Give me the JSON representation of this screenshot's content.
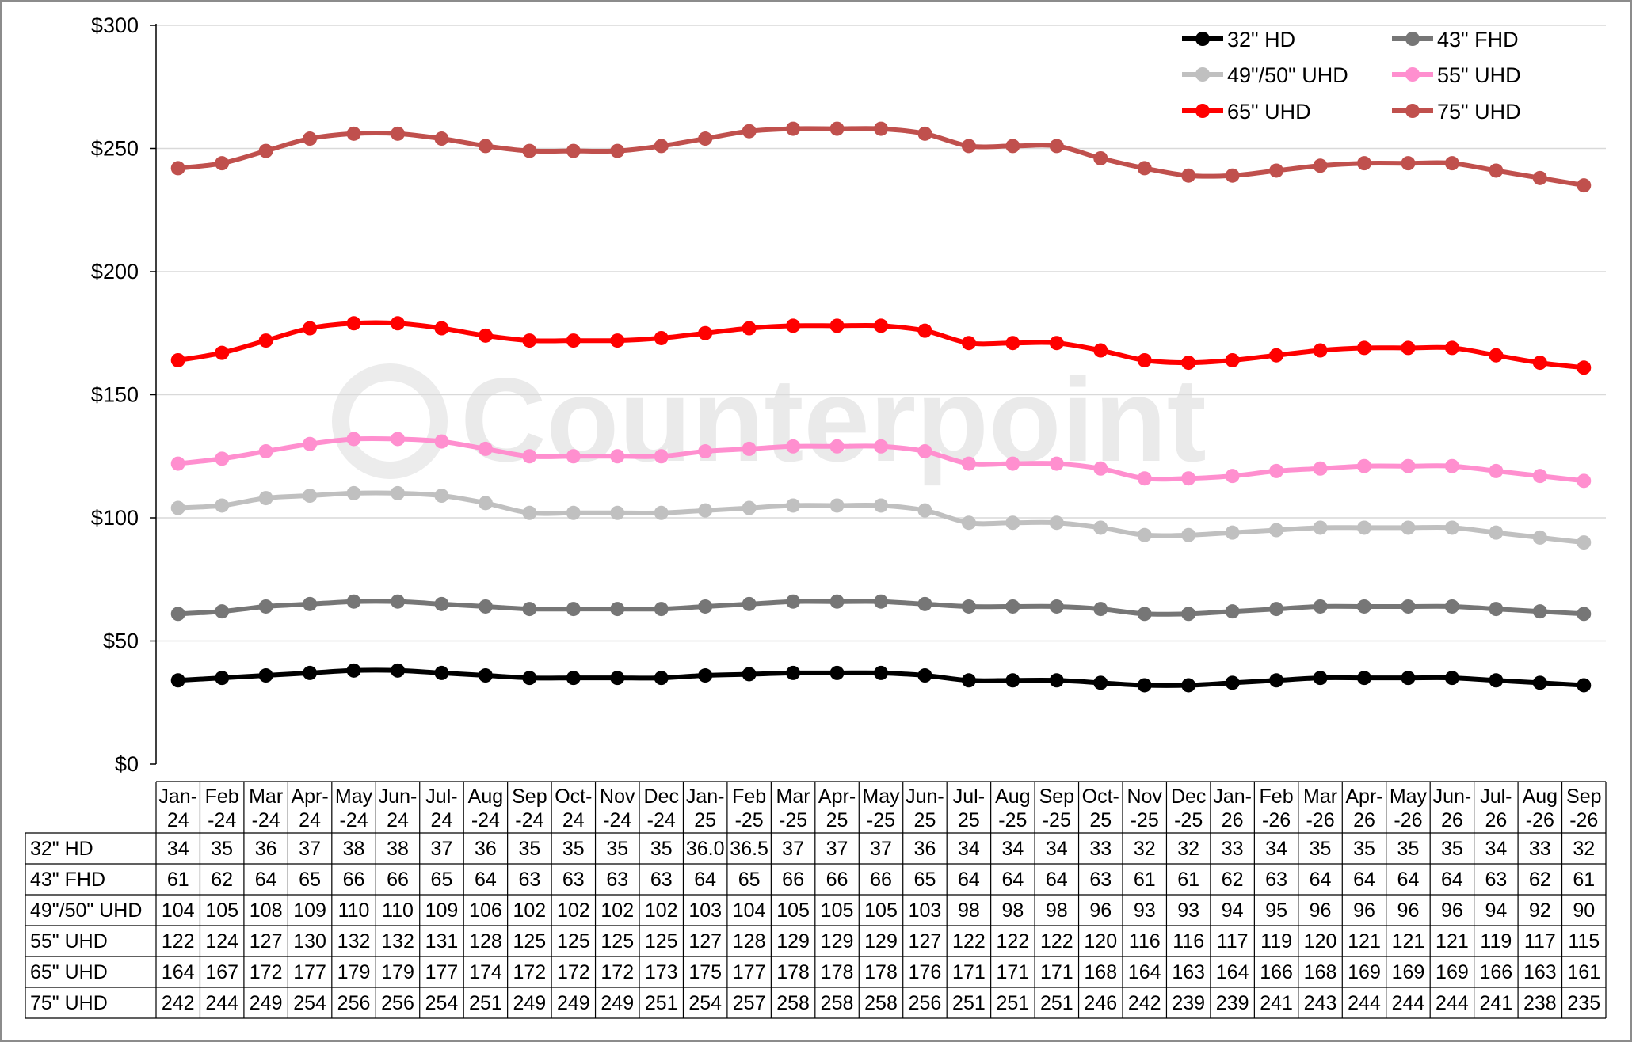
{
  "chart_data": {
    "type": "line",
    "title": "",
    "xlabel": "",
    "ylabel": "",
    "ylim": [
      0,
      300
    ],
    "y_ticks": [
      "$0",
      "$50",
      "$100",
      "$150",
      "$200",
      "$250",
      "$300"
    ],
    "y_tick_values": [
      0,
      50,
      100,
      150,
      200,
      250,
      300
    ],
    "grid": "horizontal",
    "legend_position": "top-right",
    "watermark": "Counterpoint",
    "categories": [
      [
        "Jan-",
        "24"
      ],
      [
        "Feb",
        "-24"
      ],
      [
        "Mar",
        "-24"
      ],
      [
        "Apr-",
        "24"
      ],
      [
        "May",
        "-24"
      ],
      [
        "Jun-",
        "24"
      ],
      [
        "Jul-",
        "24"
      ],
      [
        "Aug",
        "-24"
      ],
      [
        "Sep",
        "-24"
      ],
      [
        "Oct-",
        "24"
      ],
      [
        "Nov",
        "-24"
      ],
      [
        "Dec",
        "-24"
      ],
      [
        "Jan-",
        "25"
      ],
      [
        "Feb",
        "-25"
      ],
      [
        "Mar",
        "-25"
      ],
      [
        "Apr-",
        "25"
      ],
      [
        "May",
        "-25"
      ],
      [
        "Jun-",
        "25"
      ],
      [
        "Jul-",
        "25"
      ],
      [
        "Aug",
        "-25"
      ],
      [
        "Sep",
        "-25"
      ],
      [
        "Oct-",
        "25"
      ],
      [
        "Nov",
        "-25"
      ],
      [
        "Dec",
        "-25"
      ],
      [
        "Jan-",
        "26"
      ],
      [
        "Feb",
        "-26"
      ],
      [
        "Mar",
        "-26"
      ],
      [
        "Apr-",
        "26"
      ],
      [
        "May",
        "-26"
      ],
      [
        "Jun-",
        "26"
      ],
      [
        "Jul-",
        "26"
      ],
      [
        "Aug",
        "-26"
      ],
      [
        "Sep",
        "-26"
      ]
    ],
    "series": [
      {
        "name": "32\" HD",
        "color": "#000000",
        "values": [
          34,
          35,
          36,
          37,
          38,
          38,
          37,
          36,
          35,
          35,
          35,
          35,
          36.0,
          36.5,
          37,
          37,
          37,
          36,
          34,
          34,
          34,
          33,
          32,
          32,
          33,
          34,
          35,
          35,
          35,
          35,
          34,
          33,
          32
        ],
        "labels": [
          "34",
          "35",
          "36",
          "37",
          "38",
          "38",
          "37",
          "36",
          "35",
          "35",
          "35",
          "35",
          "36.0",
          "36.5",
          "37",
          "37",
          "37",
          "36",
          "34",
          "34",
          "34",
          "33",
          "32",
          "32",
          "33",
          "34",
          "35",
          "35",
          "35",
          "35",
          "34",
          "33",
          "32"
        ]
      },
      {
        "name": "43\" FHD",
        "color": "#767676",
        "values": [
          61,
          62,
          64,
          65,
          66,
          66,
          65,
          64,
          63,
          63,
          63,
          63,
          64,
          65,
          66,
          66,
          66,
          65,
          64,
          64,
          64,
          63,
          61,
          61,
          62,
          63,
          64,
          64,
          64,
          64,
          63,
          62,
          61
        ],
        "labels": [
          "61",
          "62",
          "64",
          "65",
          "66",
          "66",
          "65",
          "64",
          "63",
          "63",
          "63",
          "63",
          "64",
          "65",
          "66",
          "66",
          "66",
          "65",
          "64",
          "64",
          "64",
          "63",
          "61",
          "61",
          "62",
          "63",
          "64",
          "64",
          "64",
          "64",
          "63",
          "62",
          "61"
        ]
      },
      {
        "name": "49\"/50\" UHD",
        "color": "#c0c0c0",
        "values": [
          104,
          105,
          108,
          109,
          110,
          110,
          109,
          106,
          102,
          102,
          102,
          102,
          103,
          104,
          105,
          105,
          105,
          103,
          98,
          98,
          98,
          96,
          93,
          93,
          94,
          95,
          96,
          96,
          96,
          96,
          94,
          92,
          90
        ],
        "labels": [
          "104",
          "105",
          "108",
          "109",
          "110",
          "110",
          "109",
          "106",
          "102",
          "102",
          "102",
          "102",
          "103",
          "104",
          "105",
          "105",
          "105",
          "103",
          "98",
          "98",
          "98",
          "96",
          "93",
          "93",
          "94",
          "95",
          "96",
          "96",
          "96",
          "96",
          "94",
          "92",
          "90"
        ]
      },
      {
        "name": "55\" UHD",
        "color": "#ff8fcf",
        "values": [
          122,
          124,
          127,
          130,
          132,
          132,
          131,
          128,
          125,
          125,
          125,
          125,
          127,
          128,
          129,
          129,
          129,
          127,
          122,
          122,
          122,
          120,
          116,
          116,
          117,
          119,
          120,
          121,
          121,
          121,
          119,
          117,
          115
        ],
        "labels": [
          "122",
          "124",
          "127",
          "130",
          "132",
          "132",
          "131",
          "128",
          "125",
          "125",
          "125",
          "125",
          "127",
          "128",
          "129",
          "129",
          "129",
          "127",
          "122",
          "122",
          "122",
          "120",
          "116",
          "116",
          "117",
          "119",
          "120",
          "121",
          "121",
          "121",
          "119",
          "117",
          "115"
        ]
      },
      {
        "name": "65\" UHD",
        "color": "#ff0000",
        "values": [
          164,
          167,
          172,
          177,
          179,
          179,
          177,
          174,
          172,
          172,
          172,
          173,
          175,
          177,
          178,
          178,
          178,
          176,
          171,
          171,
          171,
          168,
          164,
          163,
          164,
          166,
          168,
          169,
          169,
          169,
          166,
          163,
          161
        ],
        "labels": [
          "164",
          "167",
          "172",
          "177",
          "179",
          "179",
          "177",
          "174",
          "172",
          "172",
          "172",
          "173",
          "175",
          "177",
          "178",
          "178",
          "178",
          "176",
          "171",
          "171",
          "171",
          "168",
          "164",
          "163",
          "164",
          "166",
          "168",
          "169",
          "169",
          "169",
          "166",
          "163",
          "161"
        ]
      },
      {
        "name": "75\" UHD",
        "color": "#c0504d",
        "values": [
          242,
          244,
          249,
          254,
          256,
          256,
          254,
          251,
          249,
          249,
          249,
          251,
          254,
          257,
          258,
          258,
          258,
          256,
          251,
          251,
          251,
          246,
          242,
          239,
          239,
          241,
          243,
          244,
          244,
          244,
          241,
          238,
          235
        ],
        "labels": [
          "242",
          "244",
          "249",
          "254",
          "256",
          "256",
          "254",
          "251",
          "249",
          "249",
          "249",
          "251",
          "254",
          "257",
          "258",
          "258",
          "258",
          "256",
          "251",
          "251",
          "251",
          "246",
          "242",
          "239",
          "239",
          "241",
          "243",
          "244",
          "244",
          "244",
          "241",
          "238",
          "235"
        ]
      }
    ]
  }
}
